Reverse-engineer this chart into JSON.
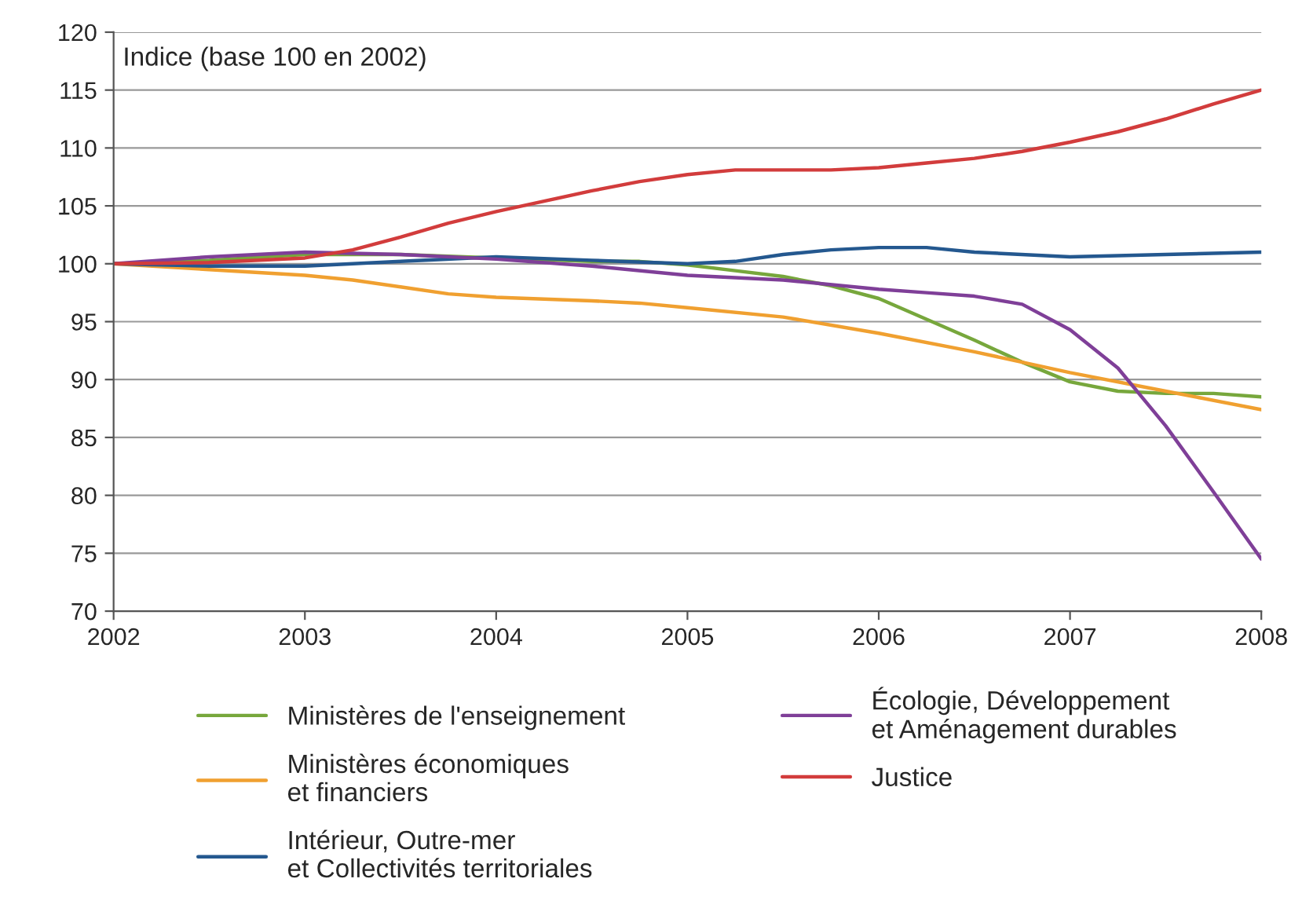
{
  "chart_data": {
    "type": "line",
    "ylabel": "Indice (base 100 en 2002)",
    "xlim": [
      2002,
      2008
    ],
    "xticks": [
      2002,
      2003,
      2004,
      2005,
      2006,
      2007,
      2008
    ],
    "ylim": [
      70,
      120
    ],
    "yticks": [
      70,
      75,
      80,
      85,
      90,
      95,
      100,
      105,
      110,
      115,
      120
    ],
    "grid": "y",
    "legend": "bottom",
    "marker": "none",
    "line_style": "solid",
    "series": [
      {
        "name": "Ministères de l'enseignement",
        "color": "#77a73c",
        "x": [
          2002,
          2002.5,
          2003,
          2003.5,
          2004,
          2004.5,
          2004.75,
          2005,
          2005.25,
          2005.5,
          2005.75,
          2006,
          2006.25,
          2006.5,
          2006.75,
          2007,
          2007.25,
          2007.5,
          2007.75,
          2008
        ],
        "values": [
          100,
          100.3,
          100.8,
          100.8,
          100.5,
          100.2,
          100.2,
          99.9,
          99.4,
          98.9,
          98.1,
          97,
          95.2,
          93.4,
          91.5,
          89.8,
          89,
          88.8,
          88.8,
          88.5
        ]
      },
      {
        "name": "Ministères économiques\net financiers",
        "color": "#f0a030",
        "x": [
          2002,
          2002.5,
          2003,
          2003.25,
          2003.5,
          2003.75,
          2004,
          2004.5,
          2004.75,
          2005,
          2005.5,
          2006,
          2006.5,
          2007,
          2007.5,
          2008
        ],
        "values": [
          100,
          99.5,
          99,
          98.6,
          98,
          97.4,
          97.1,
          96.8,
          96.6,
          96.2,
          95.4,
          94,
          92.4,
          90.6,
          89,
          87.4
        ]
      },
      {
        "name": "Intérieur, Outre-mer\net Collectivités territoriales",
        "color": "#24588f",
        "x": [
          2002,
          2002.5,
          2003,
          2003.5,
          2004,
          2004.5,
          2005,
          2005.25,
          2005.5,
          2005.75,
          2006,
          2006.25,
          2006.5,
          2007,
          2007.5,
          2008
        ],
        "values": [
          100,
          99.8,
          99.8,
          100.2,
          100.6,
          100.3,
          100,
          100.2,
          100.8,
          101.2,
          101.4,
          101.4,
          101,
          100.6,
          100.8,
          101
        ]
      },
      {
        "name": "Écologie, Développement\net Aménagement durables",
        "color": "#7f3f98",
        "x": [
          2002,
          2002.5,
          2003,
          2003.5,
          2004,
          2004.5,
          2005,
          2005.5,
          2006,
          2006.25,
          2006.5,
          2006.75,
          2007,
          2007.25,
          2007.5,
          2007.75,
          2008
        ],
        "values": [
          100,
          100.6,
          101,
          100.8,
          100.4,
          99.8,
          99,
          98.6,
          97.8,
          97.5,
          97.2,
          96.5,
          94.3,
          91,
          86,
          80.3,
          74.5
        ]
      },
      {
        "name": "Justice",
        "color": "#d23c3c",
        "x": [
          2002,
          2002.5,
          2003,
          2003.25,
          2003.5,
          2003.75,
          2004,
          2004.25,
          2004.5,
          2004.75,
          2005,
          2005.25,
          2005.5,
          2005.75,
          2006,
          2006.25,
          2006.5,
          2006.75,
          2007,
          2007.25,
          2007.5,
          2007.75,
          2008
        ],
        "values": [
          100,
          100.1,
          100.5,
          101.2,
          102.3,
          103.5,
          104.5,
          105.4,
          106.3,
          107.1,
          107.7,
          108.1,
          108.1,
          108.1,
          108.3,
          108.7,
          109.1,
          109.7,
          110.5,
          111.4,
          112.5,
          113.8,
          115
        ]
      }
    ]
  }
}
